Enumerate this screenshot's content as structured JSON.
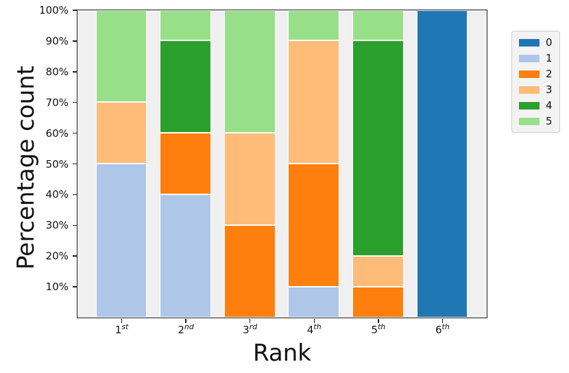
{
  "figure": {
    "background": "#ffffff",
    "plot_background": "#f0f0f0",
    "spine_color": "#1c1c1c",
    "bar_edge_color": "#ffffff"
  },
  "chart_data": {
    "type": "bar",
    "stacked": true,
    "units": "percent",
    "title": "",
    "xlabel": "Rank",
    "ylabel": "Percentage count",
    "categories": [
      "1st",
      "2nd",
      "3rd",
      "4th",
      "5th",
      "6th"
    ],
    "category_labels": [
      {
        "base": "1",
        "sup": "st"
      },
      {
        "base": "2",
        "sup": "nd"
      },
      {
        "base": "3",
        "sup": "rd"
      },
      {
        "base": "4",
        "sup": "th"
      },
      {
        "base": "5",
        "sup": "th"
      },
      {
        "base": "6",
        "sup": "th"
      }
    ],
    "series": [
      {
        "name": "0",
        "color": "#1f77b4",
        "values": [
          0,
          0,
          0,
          0,
          0,
          100
        ]
      },
      {
        "name": "1",
        "color": "#aec7e8",
        "values": [
          50,
          40,
          0,
          10,
          0,
          0
        ]
      },
      {
        "name": "2",
        "color": "#ff7f0e",
        "values": [
          0,
          20,
          30,
          40,
          10,
          0
        ]
      },
      {
        "name": "3",
        "color": "#ffbb78",
        "values": [
          20,
          0,
          30,
          40,
          10,
          0
        ]
      },
      {
        "name": "4",
        "color": "#2ca02c",
        "values": [
          0,
          30,
          0,
          0,
          70,
          0
        ]
      },
      {
        "name": "5",
        "color": "#98df8a",
        "values": [
          30,
          10,
          40,
          10,
          10,
          0
        ]
      }
    ],
    "ylim": [
      0,
      100
    ],
    "yticks": [
      {
        "value": 10,
        "label": "10%"
      },
      {
        "value": 20,
        "label": "20%"
      },
      {
        "value": 30,
        "label": "30%"
      },
      {
        "value": 40,
        "label": "40%"
      },
      {
        "value": 50,
        "label": "50%"
      },
      {
        "value": 60,
        "label": "60%"
      },
      {
        "value": 70,
        "label": "70%"
      },
      {
        "value": 80,
        "label": "80%"
      },
      {
        "value": 90,
        "label": "90%"
      },
      {
        "value": 100,
        "label": "100%"
      }
    ],
    "grid": false,
    "legend": {
      "position": "outside-upper-right",
      "entries": [
        "0",
        "1",
        "2",
        "3",
        "4",
        "5"
      ]
    }
  }
}
